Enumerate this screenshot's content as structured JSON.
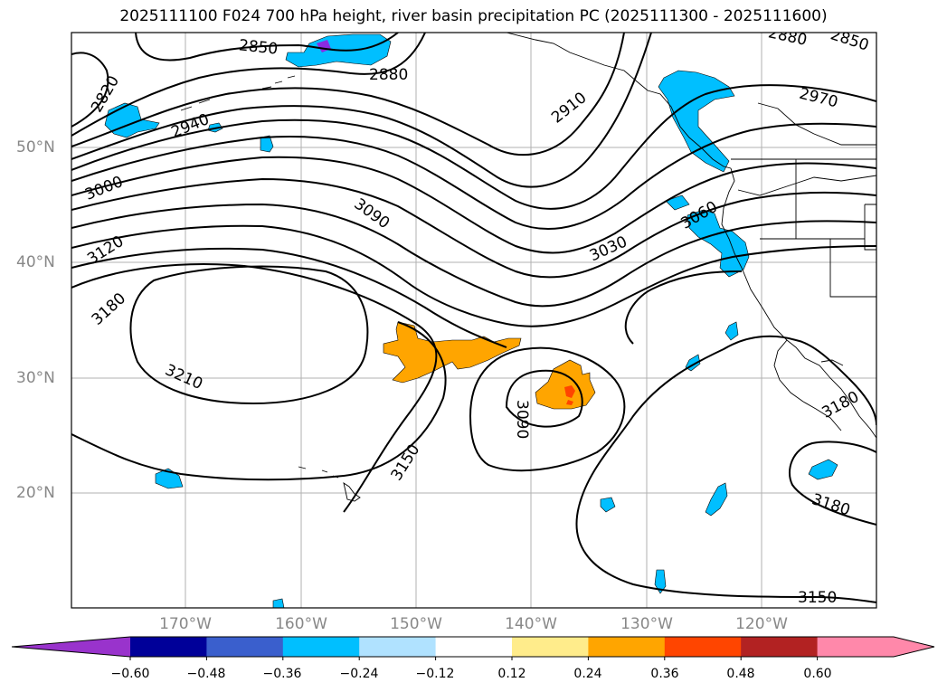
{
  "title": "2025111100 F024 700 hPa height, river basin precipitation PC (2025111300 - 2025111600)",
  "map_data": {
    "lat_labels": [
      "50°N",
      "40°N",
      "30°N",
      "20°N"
    ],
    "lon_labels": [
      "170°W",
      "160°W",
      "150°W",
      "140°W",
      "130°W",
      "120°W"
    ],
    "contour_labels": [
      "2820",
      "2850",
      "2880",
      "2940",
      "3000",
      "3120",
      "3180",
      "3090",
      "3210",
      "3150",
      "3090",
      "2910",
      "3030",
      "3060",
      "2970",
      "2880",
      "2850",
      "3180",
      "3180",
      "3150"
    ],
    "colorbar": {
      "ticks": [
        "−0.60",
        "−0.48",
        "−0.36",
        "−0.24",
        "−0.12",
        "0.12",
        "0.24",
        "0.36",
        "0.48",
        "0.60"
      ],
      "colors": [
        "#9933cc",
        "#000099",
        "#3a5fcd",
        "#00bfff",
        "#b0e2ff",
        "#ffffff",
        "#ffec8b",
        "#ffa500",
        "#ff4500",
        "#b22222",
        "#ff88aa",
        "#ff88aa"
      ]
    },
    "fill_colors": {
      "orange": "#ffa500",
      "blue": "#00bfff",
      "red": "#ff4500",
      "purple": "#8a2be2"
    }
  }
}
